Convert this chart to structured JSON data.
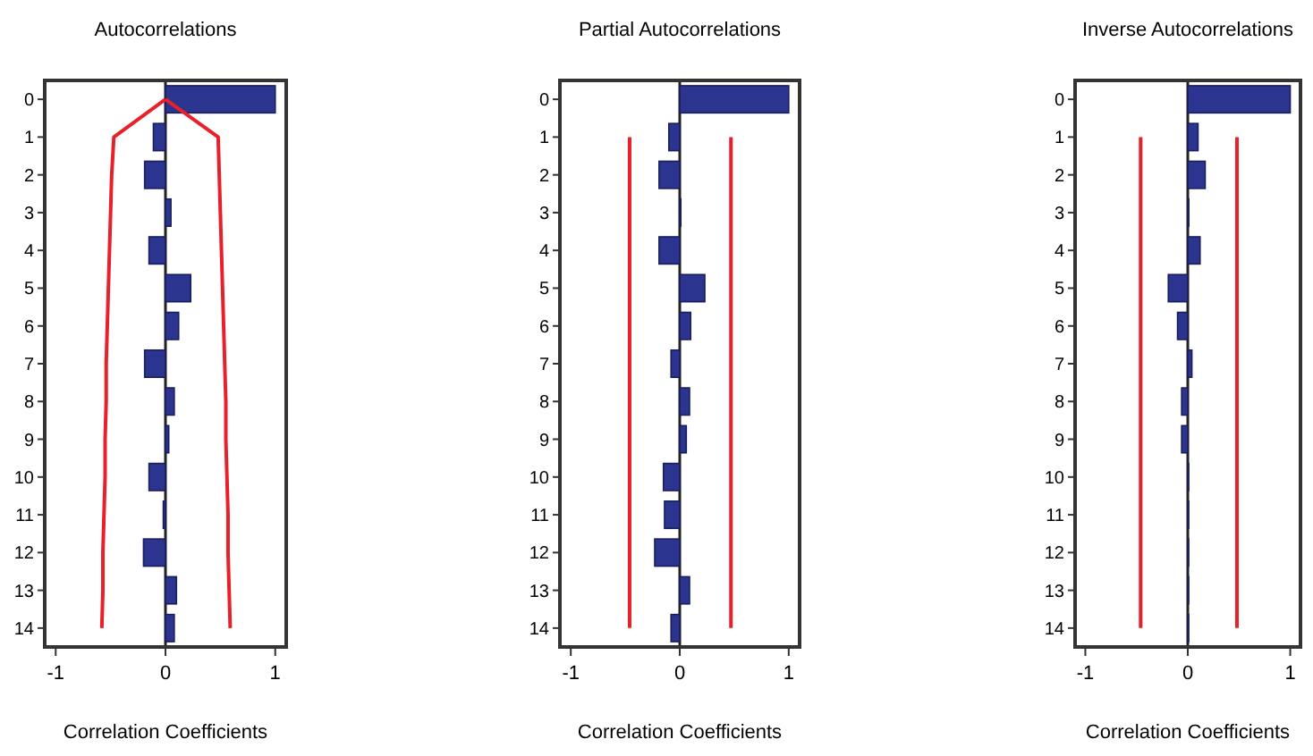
{
  "chart_data": [
    {
      "type": "bar",
      "orientation": "horizontal",
      "title": "Autocorrelations",
      "xlabel": "Correlation Coefficients",
      "categories": [
        "0",
        "1",
        "2",
        "3",
        "4",
        "5",
        "6",
        "7",
        "8",
        "9",
        "10",
        "11",
        "12",
        "13",
        "14"
      ],
      "xlim": [
        -1.1,
        1.1
      ],
      "xticks": [
        -1,
        0,
        1
      ],
      "series": [
        {
          "color": "#2b3590",
          "values": [
            1.0,
            -0.11,
            -0.19,
            0.05,
            -0.15,
            0.23,
            0.12,
            -0.19,
            0.08,
            0.03,
            -0.15,
            -0.02,
            -0.2,
            0.1,
            0.08
          ]
        },
        {
          "type": "line",
          "color": "#e8202a",
          "values": [
            0,
            -0.47,
            -0.49,
            -0.5,
            -0.51,
            -0.52,
            -0.53,
            -0.54,
            -0.54,
            -0.55,
            -0.55,
            -0.56,
            -0.57,
            -0.57,
            -0.58
          ]
        },
        {
          "type": "line",
          "color": "#e8202a",
          "values": [
            0,
            0.48,
            0.49,
            0.5,
            0.51,
            0.52,
            0.53,
            0.54,
            0.55,
            0.55,
            0.56,
            0.57,
            0.57,
            0.58,
            0.59
          ]
        }
      ]
    },
    {
      "type": "bar",
      "orientation": "horizontal",
      "title": "Partial Autocorrelations",
      "xlabel": "Correlation Coefficients",
      "categories": [
        "0",
        "1",
        "2",
        "3",
        "4",
        "5",
        "6",
        "7",
        "8",
        "9",
        "10",
        "11",
        "12",
        "13",
        "14"
      ],
      "xlim": [
        -1.1,
        1.1
      ],
      "xticks": [
        -1,
        0,
        1
      ],
      "series": [
        {
          "color": "#2b3590",
          "values": [
            1.0,
            -0.1,
            -0.19,
            0.01,
            -0.19,
            0.23,
            0.1,
            -0.08,
            0.09,
            0.06,
            -0.15,
            -0.14,
            -0.23,
            0.09,
            -0.08
          ]
        },
        {
          "type": "line",
          "color": "#e8202a",
          "values": [
            null,
            -0.46,
            -0.46,
            -0.46,
            -0.46,
            -0.46,
            -0.46,
            -0.46,
            -0.46,
            -0.46,
            -0.46,
            -0.46,
            -0.46,
            -0.46,
            -0.46
          ]
        },
        {
          "type": "line",
          "color": "#e8202a",
          "values": [
            null,
            0.47,
            0.47,
            0.47,
            0.47,
            0.47,
            0.47,
            0.47,
            0.47,
            0.47,
            0.47,
            0.47,
            0.47,
            0.47,
            0.47
          ]
        }
      ]
    },
    {
      "type": "bar",
      "orientation": "horizontal",
      "title": "Inverse Autocorrelations",
      "xlabel": "Correlation Coefficients",
      "categories": [
        "0",
        "1",
        "2",
        "3",
        "4",
        "5",
        "6",
        "7",
        "8",
        "9",
        "10",
        "11",
        "12",
        "13",
        "14"
      ],
      "xlim": [
        -1.1,
        1.1
      ],
      "xticks": [
        -1,
        0,
        1
      ],
      "series": [
        {
          "color": "#2b3590",
          "values": [
            1.0,
            0.1,
            0.17,
            0.01,
            0.12,
            -0.19,
            -0.1,
            0.04,
            -0.06,
            -0.06,
            0,
            0,
            0,
            0,
            0
          ]
        },
        {
          "type": "line",
          "color": "#e8202a",
          "values": [
            null,
            -0.46,
            -0.46,
            -0.46,
            -0.46,
            -0.46,
            -0.46,
            -0.46,
            -0.46,
            -0.46,
            -0.46,
            -0.46,
            -0.46,
            -0.46,
            -0.46
          ]
        },
        {
          "type": "line",
          "color": "#e8202a",
          "values": [
            null,
            0.48,
            0.48,
            0.48,
            0.48,
            0.48,
            0.48,
            0.48,
            0.48,
            0.48,
            0.48,
            0.48,
            0.48,
            0.48,
            0.48
          ]
        }
      ]
    }
  ]
}
